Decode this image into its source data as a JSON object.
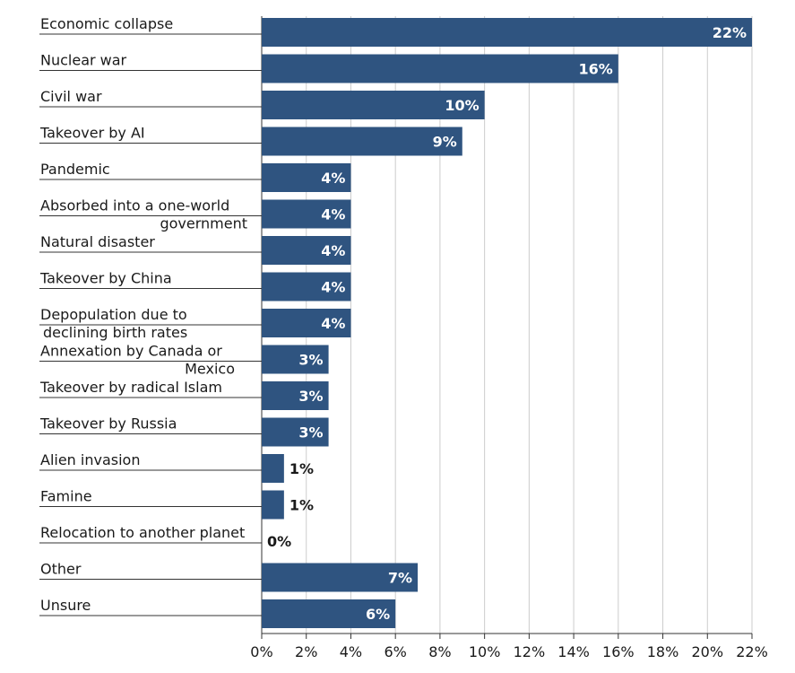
{
  "chart_data": {
    "type": "bar",
    "orientation": "horizontal",
    "categories": [
      [
        "Economic collapse"
      ],
      [
        "Nuclear war"
      ],
      [
        "Civil war"
      ],
      [
        "Takeover by AI"
      ],
      [
        "Pandemic"
      ],
      [
        "Absorbed into a one-world",
        "government"
      ],
      [
        "Natural disaster"
      ],
      [
        "Takeover by China"
      ],
      [
        "Depopulation due to",
        "declining birth rates"
      ],
      [
        "Annexation by Canada or",
        "Mexico"
      ],
      [
        "Takeover by radical Islam"
      ],
      [
        "Takeover by Russia"
      ],
      [
        "Alien invasion"
      ],
      [
        "Famine"
      ],
      [
        "Relocation to another planet"
      ],
      [
        "Other"
      ],
      [
        "Unsure"
      ]
    ],
    "values": [
      22,
      16,
      10,
      9,
      4,
      4,
      4,
      4,
      4,
      3,
      3,
      3,
      1,
      1,
      0,
      7,
      6
    ],
    "value_labels": [
      "22%",
      "16%",
      "10%",
      "9%",
      "4%",
      "4%",
      "4%",
      "4%",
      "4%",
      "3%",
      "3%",
      "3%",
      "1%",
      "1%",
      "0%",
      "7%",
      "6%"
    ],
    "x_ticks": [
      "0%",
      "2%",
      "4%",
      "6%",
      "8%",
      "10%",
      "12%",
      "14%",
      "16%",
      "18%",
      "20%",
      "22%"
    ],
    "xlim": [
      0,
      22
    ],
    "grid": "vertical",
    "bar_color": "#2f5480",
    "inside_label_color": "#ffffff",
    "outside_label_color": "#1a1a1a"
  }
}
